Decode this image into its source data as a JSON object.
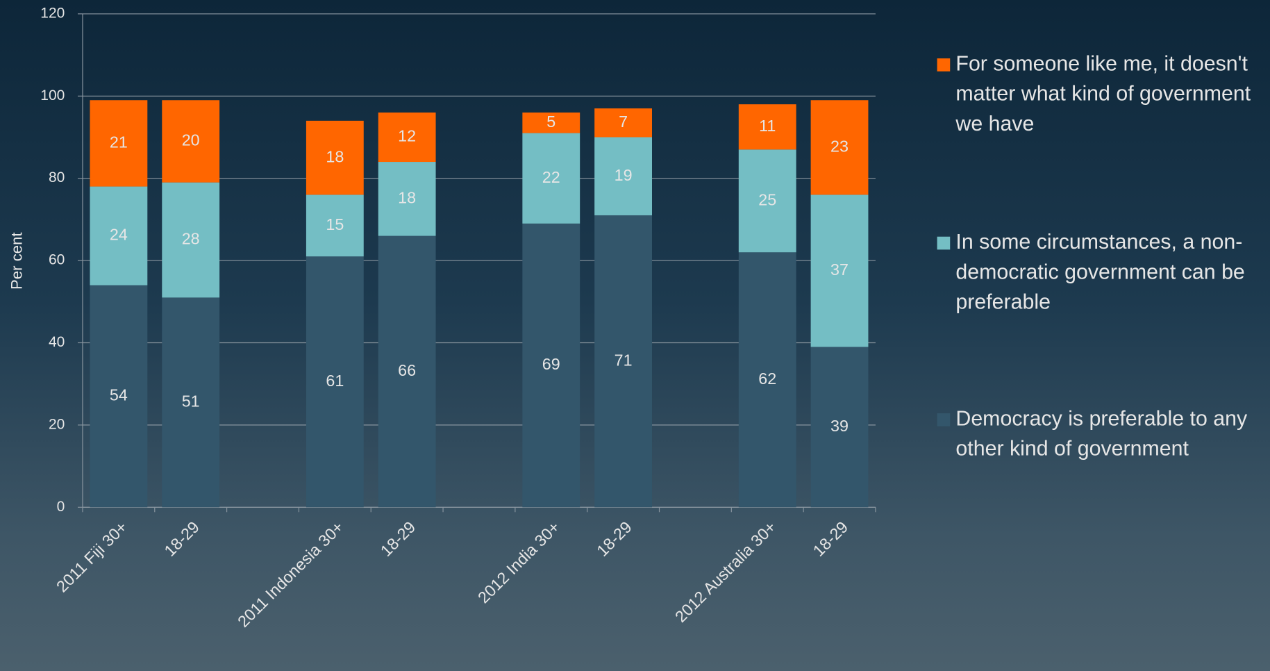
{
  "chart_data": {
    "type": "stacked_bar",
    "ylabel": "Per cent",
    "categories": [
      "2011 Fiji 30+",
      "18-29",
      null,
      "2011 Indonesia 30+",
      "18-29",
      null,
      "2012 India 30+",
      "18-29",
      null,
      "2012 Australia 30+",
      "18-29"
    ],
    "series": [
      {
        "name": "Democracy is preferable to any other kind of government",
        "color": "#33566b",
        "values": [
          54,
          51,
          null,
          61,
          66,
          null,
          69,
          71,
          null,
          62,
          39
        ]
      },
      {
        "name": "In some circumstances, a non-democratic government can be preferable",
        "color": "#74bec4",
        "values": [
          24,
          28,
          null,
          15,
          18,
          null,
          22,
          19,
          null,
          25,
          37
        ]
      },
      {
        "name": "For someone like me, it doesn't matter what kind of government we have",
        "color": "#ff6600",
        "values": [
          21,
          20,
          null,
          18,
          12,
          null,
          5,
          7,
          null,
          11,
          23
        ]
      }
    ],
    "ylim": [
      0,
      120
    ],
    "yticks": [
      0,
      20,
      40,
      60,
      80,
      100,
      120
    ],
    "grid": true,
    "legend": "right"
  }
}
